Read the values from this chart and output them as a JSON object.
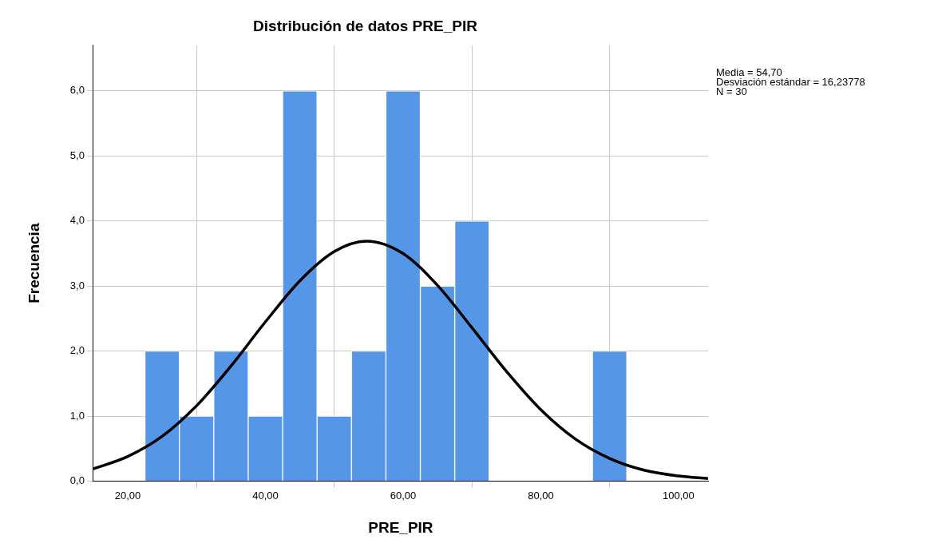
{
  "chart_data": {
    "type": "histogram",
    "title": "Distribución de datos PRE_PIR",
    "xlabel": "PRE_PIR",
    "ylabel": "Frecuencia",
    "bins": [
      22.5,
      27.5,
      32.5,
      37.5,
      42.5,
      47.5,
      52.5,
      57.5,
      62.5,
      67.5,
      72.5,
      77.5,
      82.5,
      87.5,
      92.5
    ],
    "values": [
      2,
      1,
      2,
      1,
      6,
      1,
      2,
      6,
      3,
      4,
      0,
      0,
      0,
      2
    ],
    "color": "#5596e6",
    "series": [
      {
        "type": "line",
        "color": "#000000",
        "x": [
          15,
          20,
          25,
          30,
          35,
          40,
          45,
          50,
          54.7,
          60,
          65,
          70,
          75,
          80,
          85,
          90,
          95,
          100,
          104.3
        ],
        "values": [
          0.19,
          0.38,
          0.69,
          1.16,
          1.77,
          2.45,
          3.08,
          3.53,
          3.69,
          3.5,
          3.01,
          2.36,
          1.69,
          1.1,
          0.65,
          0.35,
          0.17,
          0.08,
          0.04
        ]
      }
    ],
    "xlim": [
      15,
      104.3
    ],
    "xticks": [
      {
        "value": 20,
        "label": "20,00"
      },
      {
        "value": 40,
        "label": "40,00"
      },
      {
        "value": 60,
        "label": "60,00"
      },
      {
        "value": 80,
        "label": "80,00"
      },
      {
        "value": 100,
        "label": "100,00"
      }
    ],
    "ylim": [
      0,
      6.7
    ],
    "yticks": [
      {
        "value": 0,
        "label": "0,0"
      },
      {
        "value": 1,
        "label": "1,0"
      },
      {
        "value": 2,
        "label": "2,0"
      },
      {
        "value": 3,
        "label": "3,0"
      },
      {
        "value": 4,
        "label": "4,0"
      },
      {
        "value": 5,
        "label": "5,0"
      },
      {
        "value": 6,
        "label": "6,0"
      }
    ],
    "grid": true,
    "annotations": [
      "Media = 54,70",
      "Desviación estándar = 16,23778",
      "N = 30"
    ]
  }
}
